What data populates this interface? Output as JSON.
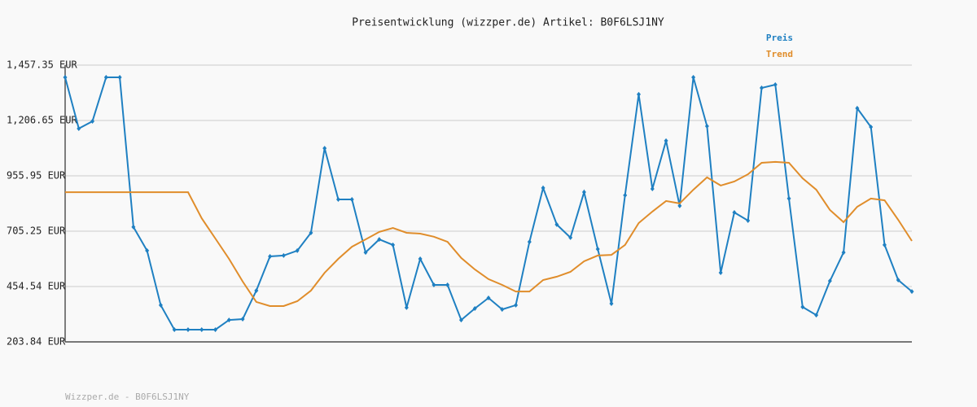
{
  "chart_data": {
    "type": "line",
    "title": "Preisentwicklung (wizzper.de) Artikel: B0F6LSJ1NY",
    "footer": "Wizzper.de - B0F6LSJ1NY",
    "ylim": [
      203.84,
      1457.35
    ],
    "yticks": [
      {
        "value": 203.84,
        "label": "203.84 EUR"
      },
      {
        "value": 454.54,
        "label": "454.54 EUR"
      },
      {
        "value": 705.25,
        "label": "705.25 EUR"
      },
      {
        "value": 955.95,
        "label": "955.95 EUR"
      },
      {
        "value": 1206.65,
        "label": "1,206.65 EUR"
      },
      {
        "value": 1457.35,
        "label": "1,457.35 EUR"
      }
    ],
    "grid": true,
    "legend": "top-right",
    "series": [
      {
        "name": "Preis",
        "color": "#1f80c2",
        "markers": true,
        "values": [
          1402,
          1170,
          1203,
          1402,
          1402,
          724,
          617,
          370,
          259,
          259,
          259,
          259,
          303,
          307,
          436,
          591,
          595,
          617,
          698,
          1081,
          849,
          849,
          609,
          668,
          643,
          359,
          580,
          462,
          462,
          303,
          355,
          403,
          351,
          370,
          657,
          901,
          735,
          676,
          882,
          624,
          377,
          868,
          1325,
          897,
          1115,
          820,
          1402,
          1181,
          517,
          790,
          753,
          1354,
          1369,
          853,
          362,
          325,
          480,
          609,
          1262,
          1177,
          643,
          484,
          432
        ]
      },
      {
        "name": "Trend",
        "color": "#e08d2b",
        "markers": false,
        "values": [
          882,
          882,
          882,
          882,
          882,
          882,
          882,
          882,
          882,
          882,
          764,
          672,
          580,
          477,
          385,
          366,
          366,
          388,
          436,
          517,
          580,
          635,
          668,
          702,
          720,
          698,
          694,
          680,
          657,
          584,
          532,
          488,
          462,
          432,
          432,
          484,
          499,
          521,
          569,
          595,
          598,
          643,
          742,
          794,
          842,
          831,
          893,
          949,
          912,
          930,
          963,
          1015,
          1019,
          1015,
          945,
          893,
          801,
          746,
          816,
          853,
          845,
          757,
          661
        ]
      }
    ]
  }
}
